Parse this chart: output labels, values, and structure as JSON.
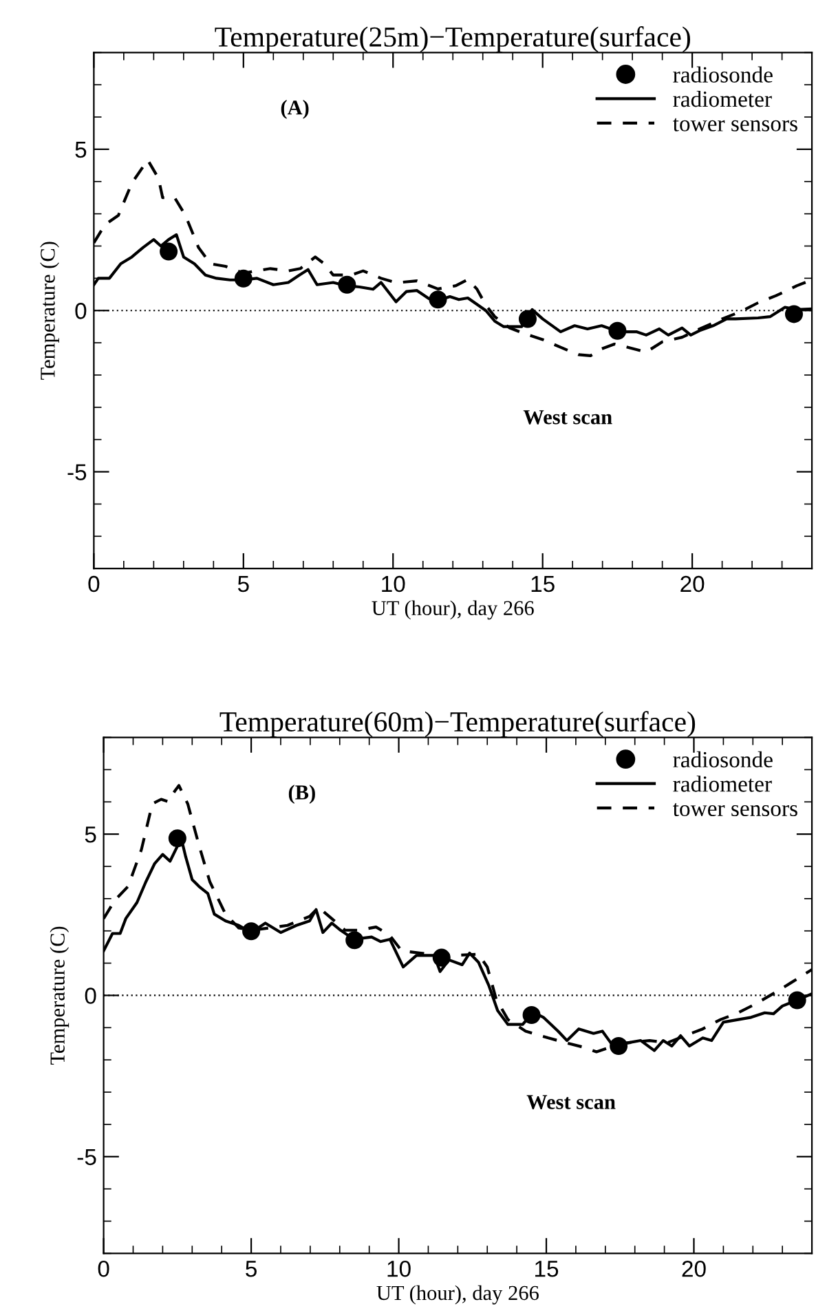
{
  "chart_data": [
    {
      "type": "line",
      "title": "Temperature(25m)−Temperature(surface)",
      "xlabel": "UT (hour), day 266",
      "ylabel": "Temperature (C)",
      "xlim": [
        0,
        24
      ],
      "ylim": [
        -8,
        8
      ],
      "xticks": [
        0,
        5,
        10,
        15,
        20
      ],
      "yticks": [
        -5,
        0,
        5
      ],
      "legend": "top right",
      "annotations": [
        "(A)",
        "West scan"
      ],
      "ref_lines": [
        {
          "axis": "y",
          "value": 0,
          "label": null,
          "line_style": "dotted"
        }
      ],
      "series": [
        {
          "name": "radiosonde",
          "type": "scatter",
          "marker": "circle",
          "color": "#000000",
          "x": [
            2.5,
            5,
            8.46,
            11.5,
            14.5,
            17.5,
            23.4
          ],
          "values": [
            1.83,
            0.99,
            0.8,
            0.34,
            -0.26,
            -0.63,
            -0.11
          ]
        },
        {
          "name": "radiometer",
          "type": "line",
          "line_style": "solid",
          "color": "#000000",
          "x": [
            0,
            0.15,
            0.52,
            0.9,
            1.27,
            1.64,
            2.0,
            2.24,
            2.5,
            2.76,
            3.0,
            3.36,
            3.73,
            4.1,
            4.55,
            5,
            5.45,
            6,
            6.5,
            6.87,
            7.16,
            7.46,
            8,
            8.43,
            8.88,
            9.33,
            9.6,
            10.1,
            10.45,
            10.8,
            11.2,
            11.5,
            11.9,
            12.2,
            12.5,
            13.1,
            13.4,
            13.7,
            14.3,
            14.65,
            15.0,
            15.6,
            16.07,
            16.5,
            16.97,
            17.56,
            18.15,
            18.46,
            18.9,
            19.2,
            19.66,
            19.95,
            20.25,
            20.7,
            21.15,
            21.45,
            22.2,
            22.6,
            23.1,
            23.5,
            24.0
          ],
          "values": [
            0.8,
            1.0,
            1.0,
            1.45,
            1.66,
            1.95,
            2.2,
            2.0,
            2.2,
            2.35,
            1.66,
            1.45,
            1.1,
            1.0,
            0.95,
            0.95,
            1.0,
            0.8,
            0.87,
            1.1,
            1.27,
            0.8,
            0.87,
            0.77,
            0.73,
            0.66,
            0.87,
            0.27,
            0.59,
            0.62,
            0.37,
            0.31,
            0.43,
            0.34,
            0.39,
            0.0,
            -0.33,
            -0.5,
            -0.5,
            0.03,
            -0.26,
            -0.66,
            -0.47,
            -0.57,
            -0.47,
            -0.66,
            -0.66,
            -0.76,
            -0.57,
            -0.76,
            -0.54,
            -0.76,
            -0.62,
            -0.47,
            -0.26,
            -0.26,
            -0.23,
            -0.19,
            0.1,
            0.03,
            0.05
          ]
        },
        {
          "name": "tower sensors",
          "type": "line",
          "line_style": "dashed",
          "color": "#000000",
          "x": [
            0,
            0.37,
            0.82,
            1.27,
            1.8,
            2.16,
            2.3,
            2.7,
            3.06,
            3.5,
            3.9,
            4.4,
            5,
            5.9,
            6.5,
            6.9,
            7.4,
            7.7,
            8,
            8.6,
            9.0,
            9.6,
            10.1,
            10.8,
            11.5,
            12.1,
            12.5,
            12.8,
            13.1,
            13.4,
            13.9,
            14.4,
            15.0,
            15.6,
            16.2,
            16.6,
            16.97,
            17.4,
            17.85,
            18.46,
            19.0,
            19.66,
            20.25,
            21.0,
            21.6,
            22.2,
            22.8,
            23.5,
            24.0
          ],
          "values": [
            2.1,
            2.66,
            2.95,
            3.95,
            4.67,
            4.1,
            3.5,
            3.5,
            2.95,
            1.95,
            1.45,
            1.37,
            1.16,
            1.3,
            1.23,
            1.3,
            1.66,
            1.45,
            1.1,
            1.1,
            1.23,
            1.0,
            0.86,
            0.92,
            0.67,
            0.77,
            0.96,
            0.67,
            0.17,
            -0.19,
            -0.54,
            -0.72,
            -0.9,
            -1.14,
            -1.37,
            -1.4,
            -1.19,
            -1.04,
            -1.14,
            -1.29,
            -0.97,
            -0.83,
            -0.57,
            -0.26,
            -0.04,
            0.24,
            0.46,
            0.77,
            0.95
          ]
        }
      ]
    },
    {
      "type": "line",
      "title": "Temperature(60m)−Temperature(surface)",
      "xlabel": "UT (hour), day 266",
      "ylabel": "Temperature (C)",
      "xlim": [
        0,
        24
      ],
      "ylim": [
        -8,
        8
      ],
      "xticks": [
        0,
        5,
        10,
        15,
        20
      ],
      "yticks": [
        -5,
        0,
        5
      ],
      "legend": "top right",
      "annotations": [
        "(B)",
        "West scan"
      ],
      "ref_lines": [
        {
          "axis": "y",
          "value": 0,
          "label": null,
          "line_style": "dotted"
        }
      ],
      "series": [
        {
          "name": "radiosonde",
          "type": "scatter",
          "marker": "circle",
          "color": "#000000",
          "x": [
            2.5,
            5,
            8.5,
            11.45,
            14.5,
            17.45,
            23.5
          ],
          "values": [
            4.87,
            1.99,
            1.71,
            1.17,
            -0.61,
            -1.57,
            -0.15
          ]
        },
        {
          "name": "radiometer",
          "type": "line",
          "line_style": "solid",
          "color": "#000000",
          "x": [
            0,
            0.3,
            0.56,
            0.75,
            1.13,
            1.43,
            1.73,
            2.0,
            2.25,
            2.4,
            2.63,
            2.78,
            3.0,
            3.23,
            3.53,
            3.75,
            4.13,
            4.58,
            5,
            5.48,
            6.0,
            6.53,
            6.98,
            7.2,
            7.43,
            7.73,
            8.03,
            8.48,
            9.08,
            9.38,
            9.7,
            10.15,
            10.6,
            11.2,
            11.4,
            11.7,
            12.15,
            12.4,
            12.7,
            13.05,
            13.35,
            13.7,
            14.2,
            14.4,
            14.6,
            14.9,
            15.4,
            15.7,
            16.1,
            16.6,
            16.9,
            17.24,
            17.76,
            18.2,
            18.66,
            18.96,
            19.25,
            19.55,
            19.85,
            20.3,
            20.6,
            21.0,
            21.5,
            21.94,
            22.4,
            22.7,
            23.0,
            23.27,
            24.0
          ],
          "values": [
            1.38,
            1.92,
            1.92,
            2.38,
            2.88,
            3.52,
            4.09,
            4.37,
            4.16,
            4.44,
            4.87,
            4.3,
            3.59,
            3.38,
            3.16,
            2.52,
            2.31,
            2.17,
            1.95,
            2.24,
            1.95,
            2.17,
            2.31,
            2.66,
            1.95,
            2.24,
            2.02,
            1.74,
            1.81,
            1.67,
            1.74,
            0.88,
            1.24,
            1.24,
            0.74,
            1.1,
            0.95,
            1.31,
            1.03,
            0.31,
            -0.47,
            -0.9,
            -0.9,
            -0.68,
            -0.54,
            -0.68,
            -1.11,
            -1.4,
            -1.04,
            -1.18,
            -1.11,
            -1.54,
            -1.47,
            -1.4,
            -1.71,
            -1.4,
            -1.57,
            -1.25,
            -1.57,
            -1.32,
            -1.4,
            -0.83,
            -0.75,
            -0.68,
            -0.54,
            -0.57,
            -0.33,
            -0.23,
            0.05
          ]
        },
        {
          "name": "tower sensors",
          "type": "line",
          "line_style": "dashed",
          "color": "#000000",
          "x": [
            0,
            0.38,
            0.83,
            1.28,
            1.65,
            1.95,
            2.18,
            2.33,
            2.55,
            2.85,
            3.23,
            3.6,
            4.13,
            4.58,
            5.03,
            5.6,
            6.23,
            6.98,
            7.28,
            7.73,
            8.18,
            8.63,
            9.23,
            9.68,
            10.1,
            10.75,
            11.35,
            11.95,
            12.7,
            13.0,
            13.3,
            13.7,
            14.3,
            15.07,
            15.67,
            16.27,
            16.7,
            17.16,
            17.76,
            18.5,
            19.1,
            19.7,
            20.3,
            20.9,
            21.5,
            22.1,
            22.7,
            23.27,
            24.0
          ],
          "values": [
            2.38,
            2.95,
            3.38,
            4.52,
            5.94,
            6.08,
            6.01,
            6.23,
            6.51,
            5.94,
            4.66,
            3.52,
            2.52,
            2.09,
            2.02,
            2.09,
            2.17,
            2.45,
            2.73,
            2.38,
            2.02,
            2.02,
            2.12,
            1.88,
            1.38,
            1.31,
            1.24,
            1.24,
            1.28,
            0.88,
            -0.11,
            -0.75,
            -1.11,
            -1.32,
            -1.47,
            -1.61,
            -1.75,
            -1.61,
            -1.47,
            -1.4,
            -1.47,
            -1.25,
            -1.04,
            -0.75,
            -0.54,
            -0.26,
            0.06,
            0.38,
            0.8
          ]
        }
      ]
    }
  ]
}
